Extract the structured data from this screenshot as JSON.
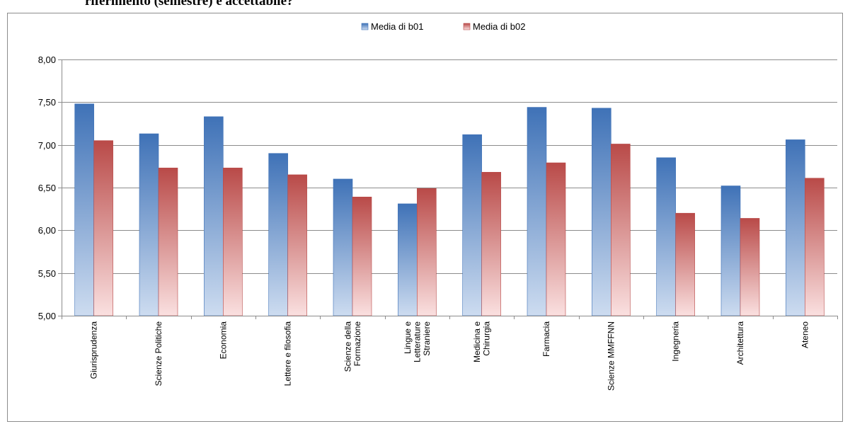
{
  "page": {
    "heading": "riferimento (semestre) è accettabile?"
  },
  "colors": {
    "b01_top": "#3f72b7",
    "b01_bottom": "#cddcf0",
    "b02_top": "#b94a48",
    "b02_bottom": "#fae0e0",
    "grid": "#8c8c8c"
  },
  "chart_data": {
    "type": "bar",
    "title": "",
    "xlabel": "",
    "ylabel": "",
    "ylim": [
      5.0,
      8.0
    ],
    "yticks": [
      "5,00",
      "5,50",
      "6,00",
      "6,50",
      "7,00",
      "7,50",
      "8,00"
    ],
    "grid": true,
    "legend_position": "top-center",
    "categories": [
      "Giurisprudenza",
      "Scienze Politiche",
      "Economia",
      "Lettere e filosofia",
      "Scienze della Formazione",
      "Lingue e Letterature Straniere",
      "Medicina e Chirurgia",
      "Farmacia",
      "Scienze MMFFNN",
      "Ingegneria",
      "Architettura",
      "Ateneo"
    ],
    "category_label_lines": [
      [
        "Giurisprudenza"
      ],
      [
        "Scienze Politiche"
      ],
      [
        "Economia"
      ],
      [
        "Lettere e filosofia"
      ],
      [
        "Scienze della",
        "Formazione"
      ],
      [
        "Lingue e",
        "Letterature",
        "Straniere"
      ],
      [
        "Medicina e",
        "Chirurgia"
      ],
      [
        "Farmacia"
      ],
      [
        "Scienze MMFFNN"
      ],
      [
        "Ingegneria"
      ],
      [
        "Architettura"
      ],
      [
        "Ateneo"
      ]
    ],
    "series": [
      {
        "name": "Media di b01",
        "values": [
          7.48,
          7.13,
          7.33,
          6.9,
          6.6,
          6.31,
          7.12,
          7.44,
          7.43,
          6.85,
          6.52,
          7.06
        ]
      },
      {
        "name": "Media di b02",
        "values": [
          7.05,
          6.73,
          6.73,
          6.65,
          6.39,
          6.49,
          6.68,
          6.79,
          7.01,
          6.2,
          6.14,
          6.61
        ]
      }
    ]
  }
}
